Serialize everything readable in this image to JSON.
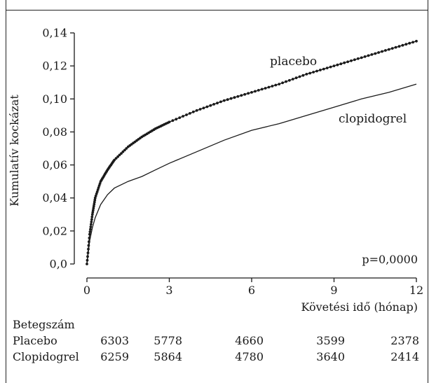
{
  "chart_data": {
    "type": "line",
    "title": "",
    "xlabel": "Követési idő (hónap)",
    "ylabel": "Kumulatív kockázat",
    "xlim": [
      0,
      12
    ],
    "ylim": [
      0,
      0.14
    ],
    "x_ticks": [
      0,
      3,
      6,
      9,
      12
    ],
    "x_tick_labels": [
      "0",
      "3",
      "6",
      "9",
      "12"
    ],
    "y_ticks": [
      0,
      0.02,
      0.04,
      0.06,
      0.08,
      0.1,
      0.12,
      0.14
    ],
    "y_tick_labels": [
      "0,0",
      "0,02",
      "0,04",
      "0,06",
      "0,08",
      "0,10",
      "0,12",
      "0,14"
    ],
    "grid": false,
    "annotation": "p=0,0000",
    "series": [
      {
        "name": "placebo",
        "style": "dotted-line",
        "color": "#1a1a1a",
        "x": [
          0,
          0.1,
          0.2,
          0.3,
          0.5,
          0.75,
          1,
          1.5,
          2,
          2.5,
          3,
          4,
          5,
          6,
          7,
          8,
          9,
          10,
          11,
          12
        ],
        "y": [
          0,
          0.018,
          0.03,
          0.04,
          0.05,
          0.057,
          0.063,
          0.071,
          0.077,
          0.082,
          0.086,
          0.093,
          0.099,
          0.104,
          0.109,
          0.115,
          0.12,
          0.125,
          0.13,
          0.135
        ]
      },
      {
        "name": "clopidogrel",
        "style": "solid-line",
        "color": "#1a1a1a",
        "x": [
          0,
          0.1,
          0.2,
          0.3,
          0.5,
          0.75,
          1,
          1.5,
          2,
          2.5,
          3,
          4,
          5,
          6,
          7,
          8,
          9,
          10,
          11,
          12
        ],
        "y": [
          0,
          0.014,
          0.022,
          0.028,
          0.036,
          0.042,
          0.046,
          0.05,
          0.053,
          0.057,
          0.061,
          0.068,
          0.075,
          0.081,
          0.085,
          0.09,
          0.095,
          0.1,
          0.104,
          0.109
        ]
      }
    ],
    "risk_table": {
      "title": "Betegszám",
      "x_positions": [
        0,
        3,
        6,
        9,
        12
      ],
      "rows": [
        {
          "label": "Placebo",
          "values": [
            "6303",
            "5778",
            "4660",
            "3599",
            "2378"
          ]
        },
        {
          "label": "Clopidogrel",
          "values": [
            "6259",
            "5864",
            "4780",
            "3640",
            "2414"
          ]
        }
      ]
    }
  }
}
